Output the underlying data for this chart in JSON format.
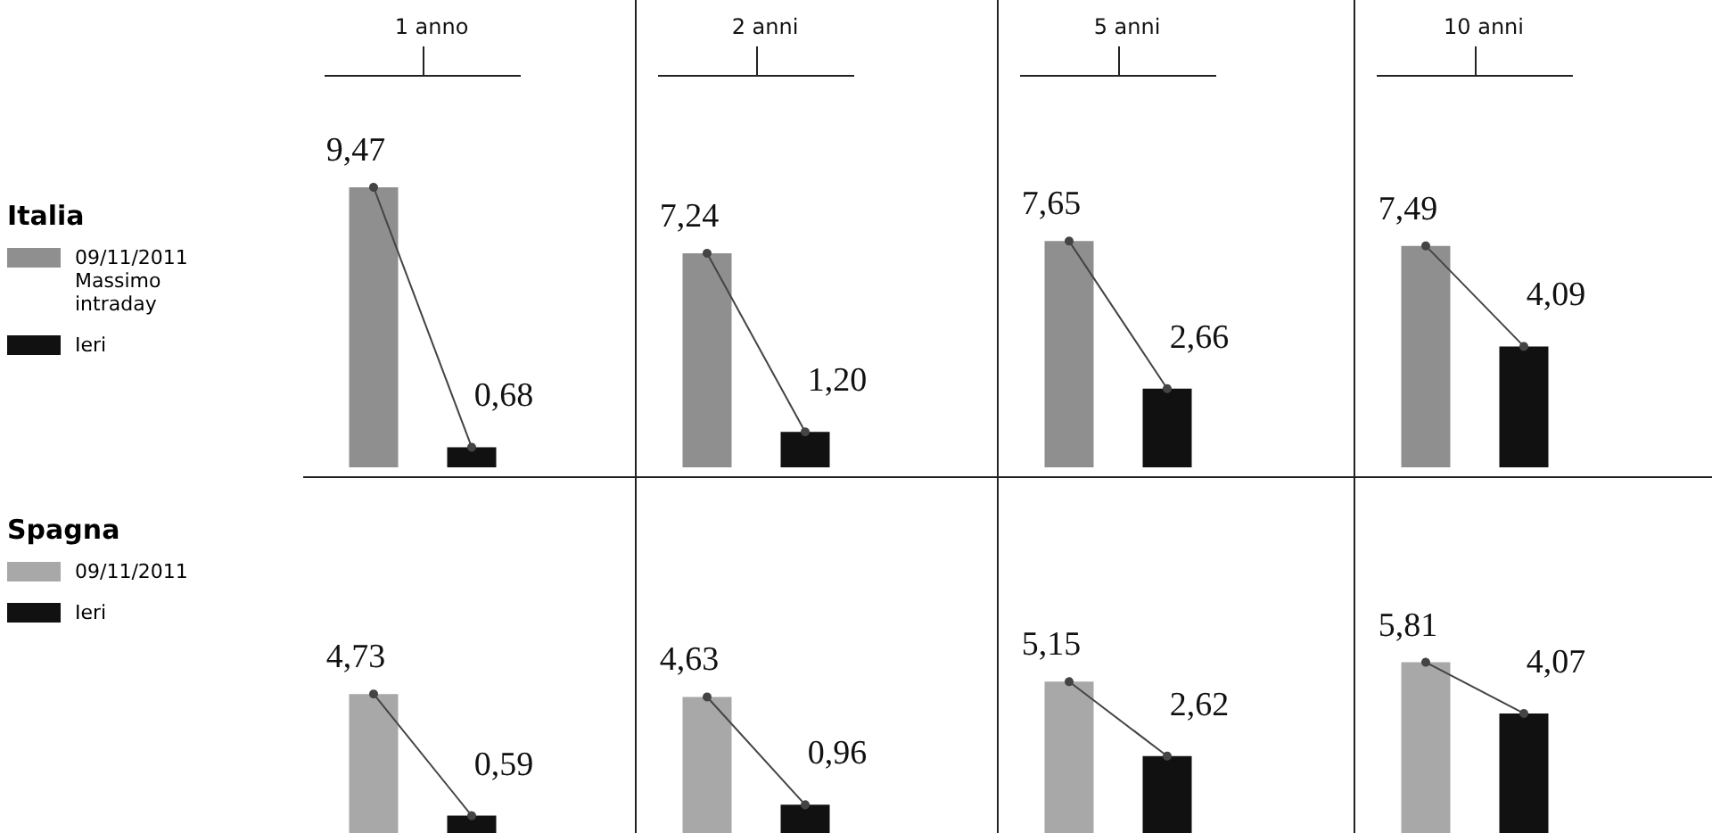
{
  "chart_data": [
    {
      "type": "other",
      "title": "Italia",
      "categories": [
        "09/11/2011\nMassimo\nintraday",
        "Ieri"
      ],
      "colors": [
        "#8f8f8f",
        "#111111"
      ]
    },
    {
      "type": "bar",
      "title": "1 anno",
      "categories": [
        null,
        null
      ],
      "tick_labels": false,
      "marker": "circle",
      "line_style": "solid",
      "series": [
        {
          "type": "bar",
          "values": [
            9.47,
            0.68
          ],
          "colors": [
            "#8f8f8f",
            "#111111"
          ],
          "value_labels": [
            "9,47",
            "0,68"
          ]
        }
      ]
    },
    {
      "type": "bar",
      "title": "2 anni",
      "categories": [
        null,
        null
      ],
      "tick_labels": false,
      "marker": "circle",
      "line_style": "solid",
      "series": [
        {
          "type": "bar",
          "values": [
            7.24,
            1.2
          ],
          "colors": [
            "#8f8f8f",
            "#111111"
          ],
          "value_labels": [
            "7,24",
            "1,20"
          ]
        }
      ]
    },
    {
      "type": "bar",
      "title": "5 anni",
      "categories": [
        null,
        null
      ],
      "tick_labels": false,
      "marker": "circle",
      "line_style": "solid",
      "series": [
        {
          "type": "bar",
          "values": [
            7.65,
            2.66
          ],
          "colors": [
            "#8f8f8f",
            "#111111"
          ],
          "value_labels": [
            "7,65",
            "2,66"
          ]
        }
      ]
    },
    {
      "type": "bar",
      "title": "10 anni",
      "categories": [
        null,
        null
      ],
      "tick_labels": false,
      "marker": "circle",
      "line_style": "solid",
      "series": [
        {
          "type": "bar",
          "values": [
            7.49,
            4.09
          ],
          "colors": [
            "#8f8f8f",
            "#111111"
          ],
          "value_labels": [
            "7,49",
            "4,09"
          ]
        }
      ]
    },
    {
      "type": "other",
      "title": "Spagna",
      "categories": [
        "09/11/2011",
        "Ieri"
      ],
      "colors": [
        "#a8a8a8",
        "#111111"
      ]
    },
    {
      "type": "bar",
      "categories": [
        null,
        null
      ],
      "tick_labels": false,
      "marker": "circle",
      "line_style": "solid",
      "series": [
        {
          "type": "bar",
          "values": [
            4.73,
            0.59
          ],
          "colors": [
            "#a8a8a8",
            "#111111"
          ],
          "value_labels": [
            "4,73",
            "0,59"
          ]
        }
      ]
    },
    {
      "type": "bar",
      "categories": [
        null,
        null
      ],
      "tick_labels": false,
      "marker": "circle",
      "line_style": "solid",
      "series": [
        {
          "type": "bar",
          "values": [
            4.63,
            0.96
          ],
          "colors": [
            "#a8a8a8",
            "#111111"
          ],
          "value_labels": [
            "4,63",
            "0,96"
          ]
        }
      ]
    },
    {
      "type": "bar",
      "categories": [
        null,
        null
      ],
      "tick_labels": false,
      "marker": "circle",
      "line_style": "solid",
      "series": [
        {
          "type": "bar",
          "values": [
            5.15,
            2.62
          ],
          "colors": [
            "#a8a8a8",
            "#111111"
          ],
          "value_labels": [
            "5,15",
            "2,62"
          ]
        }
      ]
    },
    {
      "type": "bar",
      "categories": [
        null,
        null
      ],
      "tick_labels": false,
      "marker": "circle",
      "line_style": "solid",
      "series": [
        {
          "type": "bar",
          "values": [
            5.81,
            4.07
          ],
          "colors": [
            "#a8a8a8",
            "#111111"
          ],
          "value_labels": [
            "5,81",
            "4,07"
          ]
        }
      ]
    }
  ]
}
